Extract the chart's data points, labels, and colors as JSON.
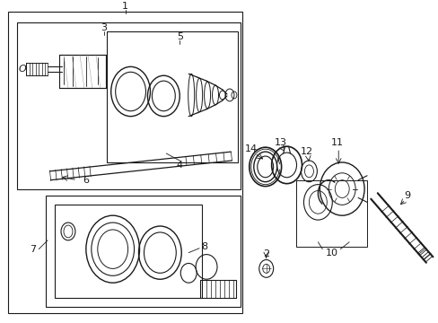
{
  "bg_color": "#ffffff",
  "line_color": "#1a1a1a",
  "figure_width": 4.89,
  "figure_height": 3.6,
  "dpi": 100
}
